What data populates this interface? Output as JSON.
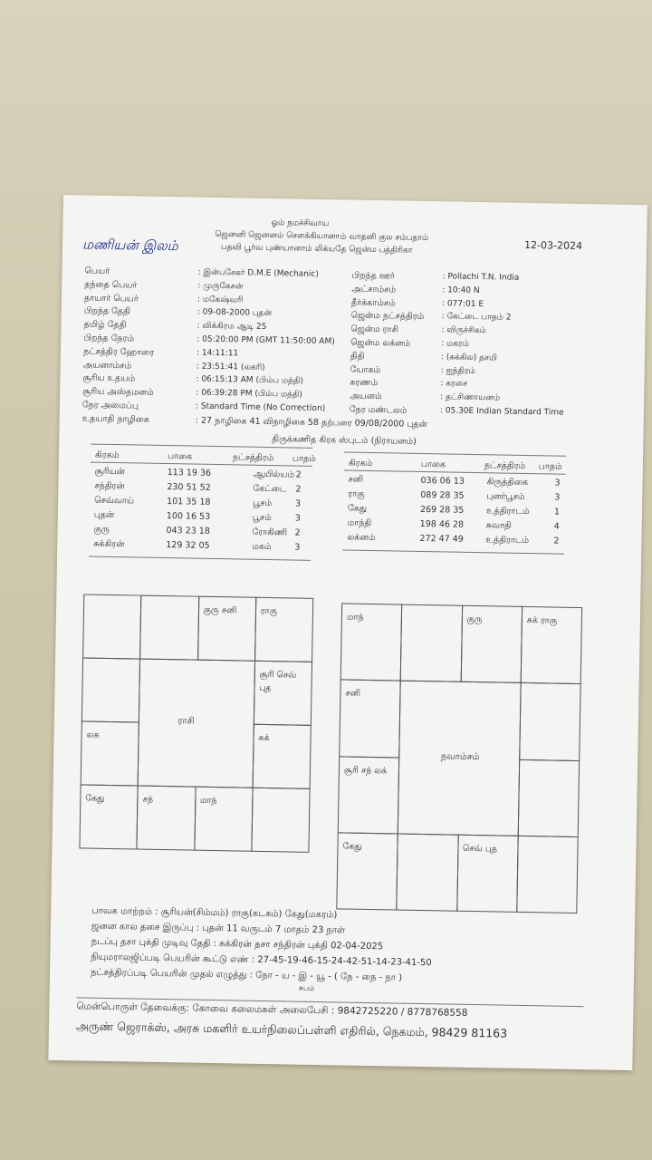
{
  "header": {
    "invocation": "ஓம் நமச்சிவாய",
    "line1": "ஜெனனி ஜெனனம் செளக்கியானாம் வாதனி குல சம்பதாம்",
    "line2": "பதவி பூர்வ புண்யானாம் லிக்யதே ஜென்ம பத்திரிகா",
    "date": "12-03-2024",
    "handwritten": "மணியன் இலம்"
  },
  "details_left": [
    [
      "பெயர்",
      ": இன்பசேகர் D.M.E (Mechanic)"
    ],
    [
      "தந்தை பெயர்",
      ": முருகேசன்"
    ],
    [
      "தாயார் பெயர்",
      ": மகேஷ்வரி"
    ],
    [
      "பிறந்த தேதி",
      ": 09-08-2000 புதன்"
    ],
    [
      "தமிழ் தேதி",
      ": விக்கிரம ஆடி 25"
    ],
    [
      "பிறந்த நேரம்",
      ": 05:20:00 PM (GMT 11:50:00 AM)"
    ],
    [
      "நட்சத்திர ஹோரை",
      ": 14:11:11"
    ],
    [
      "அயனாம்சம்",
      ": 23:51:41 (லகரி)"
    ],
    [
      "சூரிய உதயம்",
      ": 06:15:13 AM (பிம்ப மத்தி)"
    ],
    [
      "சூரிய அஸ்தமனம்",
      ": 06:39:28 PM (பிம்ப மத்தி)"
    ],
    [
      "நேர அமைப்பு",
      ": Standard Time (No Correction)"
    ],
    [
      "உதயாதி நாழிகை",
      ": 27 நாழிகை 41 விநாழிகை 58 தற்பரை 09/08/2000 புதன்"
    ]
  ],
  "details_right": [
    [
      "பிறந்த ஊர்",
      ": Pollachi T.N. India"
    ],
    [
      "அட்சாம்சம்",
      ": 10:40 N"
    ],
    [
      "தீர்க்காம்சம்",
      ": 077:01 E"
    ],
    [
      "ஜென்ம நட்சத்திரம்",
      ": கேட்டை பாதம் 2"
    ],
    [
      "ஜென்ம ராசி",
      ": விருச்சிகம்"
    ],
    [
      "ஜென்ம லக்னம்",
      ": மகரம்"
    ],
    [
      "திதி",
      ": (சுக்கில) தசமி"
    ],
    [
      "யோகம்",
      ": ஐந்திரம்"
    ],
    [
      "கரணம்",
      ": கரசை"
    ],
    [
      "அயனம்",
      ": தட்சிணாயனம்"
    ],
    [
      "நேர மண்டலம்",
      ": 05.30E Indian Standard Time"
    ]
  ],
  "planet_table": {
    "title": "திருக்கணித கிரக ஸ்புடம் (நிராயனம்)",
    "headers": [
      "கிரகம்",
      "பாகை",
      "நட்சத்திரம்",
      "பாதம்"
    ],
    "left": [
      [
        "சூரியன்",
        "113 19 36",
        "ஆயில்யம்",
        2
      ],
      [
        "சந்திரன்",
        "230 51 52",
        "கேட்டை",
        2
      ],
      [
        "செவ்வாய்",
        "101 35 18",
        "பூசம்",
        3
      ],
      [
        "புதன்",
        "100 16 53",
        "பூசம்",
        3
      ],
      [
        "குரு",
        "043 23 18",
        "ரோகிணி",
        2
      ],
      [
        "சுக்கிரன்",
        "129 32 05",
        "மகம்",
        3
      ]
    ],
    "right": [
      [
        "சனி",
        "036 06 13",
        "கிருத்திகை",
        3
      ],
      [
        "ராகு",
        "089 28 35",
        "புனர்பூசம்",
        3
      ],
      [
        "கேது",
        "269 28 35",
        "உத்திராடம்",
        1
      ],
      [
        "மாந்தி",
        "198 46 28",
        "சுவாதி",
        4
      ],
      [
        "லக்னம்",
        "272 47 49",
        "உத்திராடம்",
        2
      ]
    ]
  },
  "rasi_chart": {
    "center": "ராசி",
    "houses": [
      null,
      null,
      "குரு சனி",
      "ராகு",
      "சூரி செவ் புத",
      "சுக்",
      null,
      "மாந்",
      "சந்",
      "கேது",
      "லக",
      null
    ]
  },
  "navamsa_chart": {
    "center": "நவாம்சம்",
    "houses": [
      "மாந்",
      null,
      "குரு",
      "சுக் ராகு",
      null,
      null,
      null,
      "செவ் புத",
      null,
      "கேது",
      "சூரி சந் லக்",
      "சனி"
    ]
  },
  "footer": {
    "lines": [
      "பாவக மாற்றம் : சூரியன்(சிம்மம்)  ராகு(கடகம்)  கேது(மகரம்)",
      "ஜனன கால தசை இருப்பு : புதன் 11 வருடம் 7 மாதம் 23 நாள்",
      "நடப்பு தசா புக்தி முடிவு தேதி : சுக்கிரன் தசா சந்திரன் புக்தி 02-04-2025",
      "நியுமராலஜிப்படி பெயரின் கூட்டு எண் : 27-45-19-46-15-24-42-51-14-23-41-50",
      "நட்சத்திரப்படி பெயரின் முதல் எழுத்து : நோ - ய - இ - யூ - ( நே - நை - நா )"
    ],
    "blessing": "சுபம்",
    "software": "மென்பொருள் தேவைக்கு:  கோவை கலைமகள்   அலைபேசி : 9842725220 / 8778768558",
    "shop": "அருண் ஜெராக்ஸ், அரசு மகளிர் உயர்நிலைப்பள்ளி எதிரில், நெகமம், 98429 81163"
  }
}
